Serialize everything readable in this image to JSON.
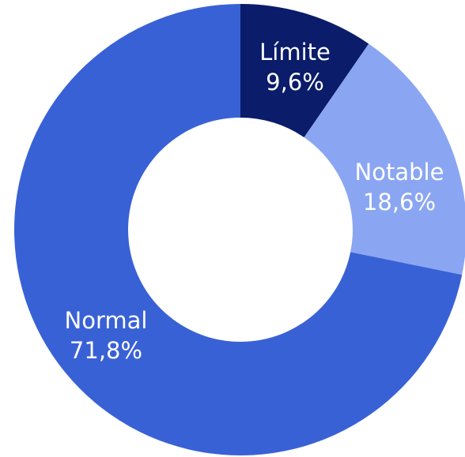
{
  "chart_data": {
    "type": "pie",
    "donut": true,
    "start_angle_deg": 0,
    "direction": "clockwise",
    "slices": [
      {
        "label": "Límite",
        "value": 9.6,
        "value_text": "9,6%",
        "color": "#0a1c6a"
      },
      {
        "label": "Notable",
        "value": 18.6,
        "value_text": "18,6%",
        "color": "#8aa6f2"
      },
      {
        "label": "Normal",
        "value": 71.8,
        "value_text": "71,8%",
        "color": "#3961d6"
      }
    ],
    "legend": "none",
    "title": ""
  }
}
